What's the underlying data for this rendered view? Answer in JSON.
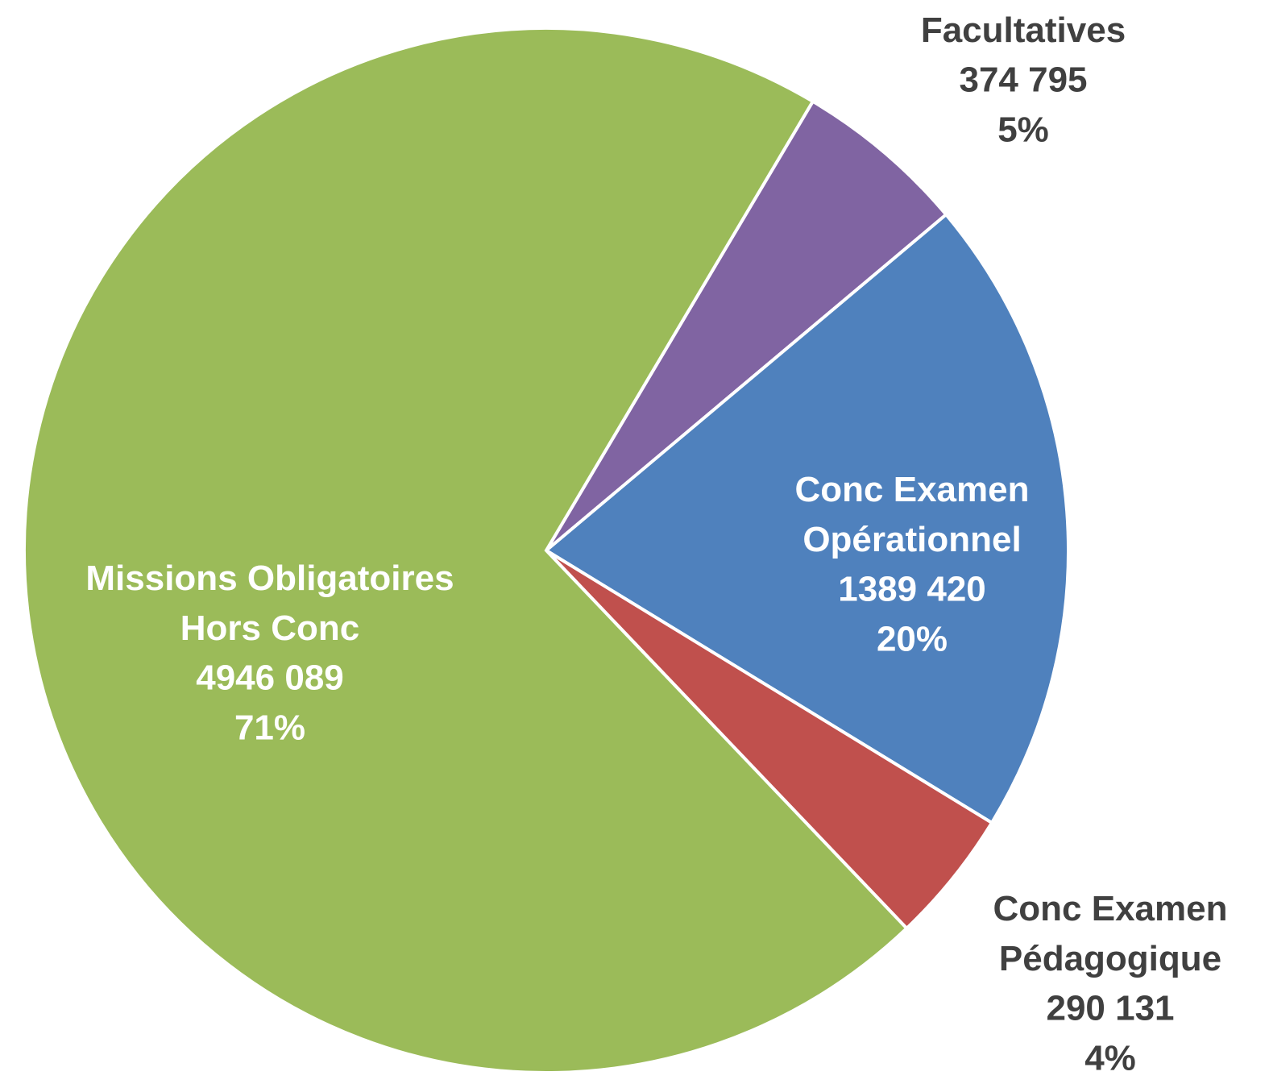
{
  "chart_data": {
    "type": "pie",
    "categories": [
      "Facultatives",
      "Conc Examen\nOpérationnel",
      "Conc Examen\nPédagogique",
      "Missions Obligatoires\nHors Conc"
    ],
    "values": [
      374795,
      1389420,
      290131,
      4946089
    ],
    "value_labels": [
      "374 795",
      "1389 420",
      "290 131",
      "4946 089"
    ],
    "percent_values": [
      5,
      20,
      4,
      71
    ],
    "percent_labels": [
      "5%",
      "20%",
      "4%",
      "71%"
    ],
    "colors": [
      "#8064a2",
      "#4f81bd",
      "#c0504d",
      "#9bbb59"
    ]
  }
}
